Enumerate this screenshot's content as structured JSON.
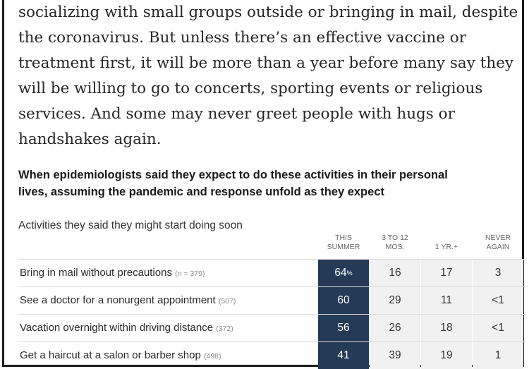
{
  "intro": {
    "lines": [
      "socializing with small groups outside or bringing in mail, despite",
      "the coronavirus. But unless there’s an effective vaccine or",
      "treatment first, it will be more than a year before many say they",
      "will be willing to go to concerts, sporting events or religious",
      "services. And some may never greet people with hugs or",
      "handshakes again."
    ]
  },
  "table": {
    "heading_lines": [
      "When epidemiologists said they expect to do these activities in their personal",
      "lives, assuming the pandemic and response unfold as they expect"
    ],
    "subheading": "Activities they said they might start doing soon",
    "columns": [
      {
        "line1": "This",
        "line2": "summer"
      },
      {
        "line1": "3 to 12",
        "line2": "mos."
      },
      {
        "line1": "",
        "line2": "1 yr.+"
      },
      {
        "line1": "Never",
        "line2": "again"
      }
    ],
    "rows": [
      {
        "label": "Bring in mail without precautions",
        "n": "(n = 379)",
        "values": [
          "64",
          "16",
          "17",
          "3"
        ],
        "first_suffix": "%"
      },
      {
        "label": "See a doctor for a nonurgent appointment",
        "n": "(507)",
        "values": [
          "60",
          "29",
          "11",
          "<1"
        ]
      },
      {
        "label": "Vacation overnight within driving distance",
        "n": "(372)",
        "values": [
          "56",
          "26",
          "18",
          "<1"
        ]
      },
      {
        "label": "Get a haircut at a salon or barber shop",
        "n": "(498)",
        "values": [
          "41",
          "39",
          "19",
          "1"
        ]
      }
    ],
    "colors": {
      "highlight": "#253a57",
      "cell": "#f1f1f1"
    }
  }
}
